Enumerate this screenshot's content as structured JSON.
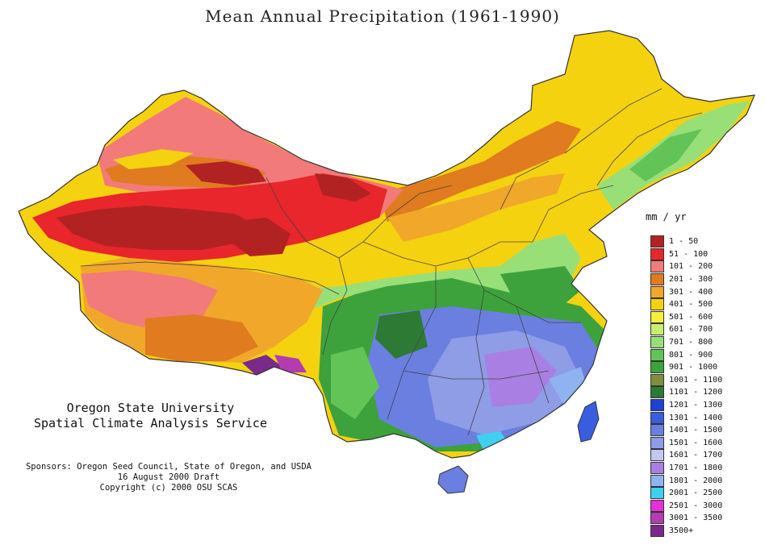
{
  "title": "Mean Annual Precipitation (1961-1990)",
  "credits": {
    "org_line1": "Oregon State University",
    "org_line2": "Spatial Climate Analysis Service",
    "sponsors": "Sponsors: Oregon Seed Council, State of Oregon, and USDA",
    "date": "16 August 2000 Draft",
    "copyright": "Copyright (c) 2000 OSU SCAS"
  },
  "legend": {
    "unit": "mm / yr",
    "classes": [
      {
        "label": "1 - 50",
        "color": "#b22222"
      },
      {
        "label": "51 - 100",
        "color": "#e8262b"
      },
      {
        "label": "101 - 200",
        "color": "#f27a7a"
      },
      {
        "label": "201 - 300",
        "color": "#e07b1f"
      },
      {
        "label": "301 - 400",
        "color": "#f0a72a"
      },
      {
        "label": "401 - 500",
        "color": "#f5d20f"
      },
      {
        "label": "501 - 600",
        "color": "#f7ee3c"
      },
      {
        "label": "601 - 700",
        "color": "#c8ee6e"
      },
      {
        "label": "701 - 800",
        "color": "#98df78"
      },
      {
        "label": "801 - 900",
        "color": "#62c457"
      },
      {
        "label": "901 - 1000",
        "color": "#3da23c"
      },
      {
        "label": "1001 - 1100",
        "color": "#7e8f3e"
      },
      {
        "label": "1101 - 1200",
        "color": "#2d7a35"
      },
      {
        "label": "1201 - 1300",
        "color": "#1f3fd6"
      },
      {
        "label": "1301 - 1400",
        "color": "#3a5de0"
      },
      {
        "label": "1401 - 1500",
        "color": "#6a7fe0"
      },
      {
        "label": "1501 - 1600",
        "color": "#8f9ce6"
      },
      {
        "label": "1601 - 1700",
        "color": "#c3c7ef"
      },
      {
        "label": "1701 - 1800",
        "color": "#a97fe3"
      },
      {
        "label": "1801 - 2000",
        "color": "#8fb2f0"
      },
      {
        "label": "2001 - 2500",
        "color": "#3fd0f0"
      },
      {
        "label": "2501 - 3000",
        "color": "#e82fd6"
      },
      {
        "label": "3001 - 3500",
        "color": "#b33cb3"
      },
      {
        "label": "3500+",
        "color": "#7a2a8a"
      }
    ]
  }
}
